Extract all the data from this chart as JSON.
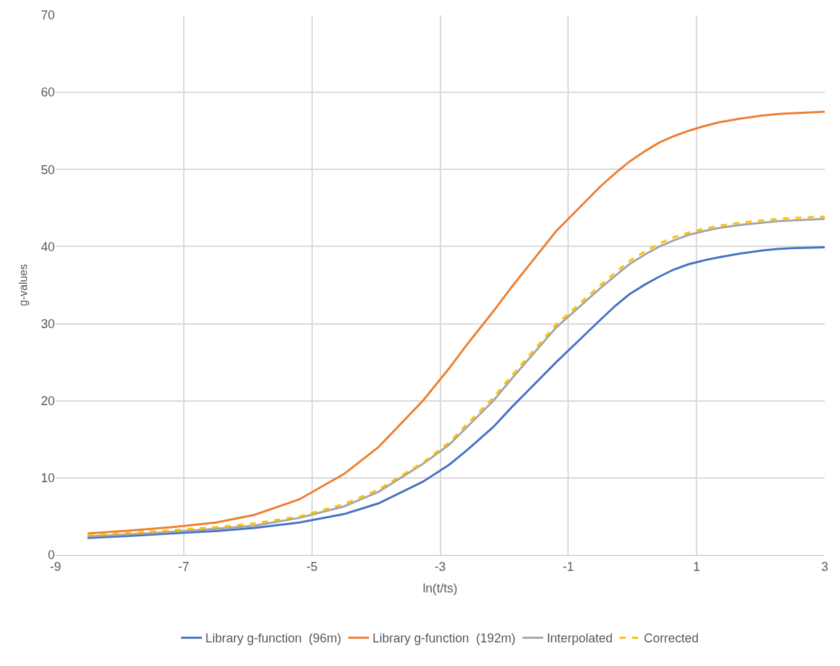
{
  "chart_data": {
    "type": "line",
    "xlabel": "ln(t/ts)",
    "ylabel": "g-values",
    "x": [
      -8.5,
      -7.8,
      -7.2,
      -6.5,
      -5.9,
      -5.2,
      -4.5,
      -3.96,
      -3.27,
      -2.86,
      -2.58,
      -2.17,
      -1.88,
      -1.19,
      -0.5,
      -0.27,
      -0.05,
      0.2,
      0.42,
      0.64,
      0.87,
      1.11,
      1.34,
      1.68,
      2.03,
      2.28,
      2.49,
      3.0
    ],
    "series": [
      {
        "name": "Library g-function  (96m)",
        "color": "#4472c4",
        "line_style": "solid",
        "values": [
          2.2,
          2.5,
          2.8,
          3.1,
          3.5,
          4.2,
          5.3,
          6.7,
          9.5,
          11.7,
          13.6,
          16.6,
          19.2,
          25.0,
          30.5,
          32.3,
          33.8,
          35.1,
          36.1,
          37.0,
          37.7,
          38.2,
          38.6,
          39.1,
          39.5,
          39.7,
          39.8,
          39.9
        ]
      },
      {
        "name": "Library g-function  (192m)",
        "color": "#ed7d31",
        "line_style": "solid",
        "values": [
          2.8,
          3.2,
          3.6,
          4.2,
          5.2,
          7.2,
          10.5,
          14.0,
          20.0,
          24.2,
          27.3,
          31.6,
          34.8,
          42.0,
          47.8,
          49.5,
          51.0,
          52.4,
          53.5,
          54.3,
          55.0,
          55.6,
          56.1,
          56.6,
          57.0,
          57.2,
          57.3,
          57.5
        ]
      },
      {
        "name": "Interpolated",
        "color": "#a5a5a5",
        "line_style": "solid",
        "values": [
          2.4,
          2.7,
          3.0,
          3.4,
          3.8,
          4.8,
          6.3,
          8.2,
          11.8,
          14.3,
          16.6,
          20.0,
          22.9,
          29.5,
          34.6,
          36.2,
          37.7,
          39.0,
          40.0,
          40.8,
          41.5,
          42.0,
          42.4,
          42.8,
          43.1,
          43.3,
          43.4,
          43.6
        ]
      },
      {
        "name": "Corrected",
        "color": "#ffc000",
        "line_style": "dashed",
        "values": [
          2.6,
          2.9,
          3.2,
          3.6,
          4.1,
          5.0,
          6.6,
          8.5,
          12.0,
          14.6,
          17.0,
          20.4,
          23.3,
          29.9,
          35.0,
          36.6,
          38.1,
          39.4,
          40.4,
          41.2,
          41.8,
          42.3,
          42.7,
          43.1,
          43.4,
          43.6,
          43.7,
          43.9
        ]
      }
    ],
    "xlim": [
      -9,
      3
    ],
    "xticks": [
      -9,
      -7,
      -5,
      -3,
      -1,
      1,
      3
    ],
    "ylim": [
      0,
      70
    ],
    "yticks": [
      0,
      10,
      20,
      30,
      40,
      50,
      60,
      70
    ],
    "grid": true,
    "legend": "bottom",
    "marker": "none"
  }
}
